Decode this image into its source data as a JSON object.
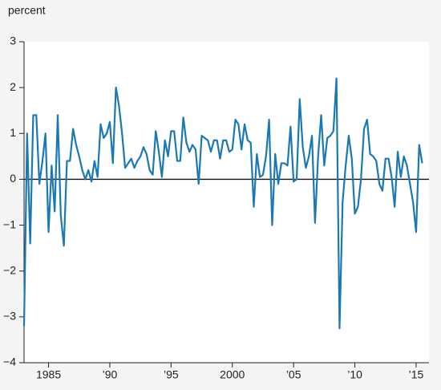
{
  "chart_data": {
    "type": "line",
    "y_label": "percent",
    "color": "#1a78b4",
    "xlim": [
      1983,
      2016.05
    ],
    "ylim": [
      -4,
      3
    ],
    "yticks": [
      {
        "value": -4,
        "label": "−4"
      },
      {
        "value": -3,
        "label": "−3"
      },
      {
        "value": -2,
        "label": "−2"
      },
      {
        "value": -1,
        "label": "−1"
      },
      0,
      1,
      2,
      3
    ],
    "xticks": [
      1985,
      {
        "value": 1990,
        "label": "’90"
      },
      {
        "value": 1995,
        "label": "’95"
      },
      2000,
      {
        "value": 2005,
        "label": "’05"
      },
      {
        "value": 2010,
        "label": "’10"
      },
      {
        "value": 2015,
        "label": "’15"
      }
    ],
    "zero_line": 0,
    "x": [
      1983,
      1983.25,
      1983.5,
      1983.75,
      1984,
      1984.25,
      1984.5,
      1984.75,
      1985,
      1985.25,
      1985.5,
      1985.75,
      1986,
      1986.25,
      1986.5,
      1986.75,
      1987,
      1987.25,
      1987.5,
      1987.75,
      1988,
      1988.25,
      1988.5,
      1988.75,
      1989,
      1989.25,
      1989.5,
      1989.75,
      1990,
      1990.25,
      1990.5,
      1990.75,
      1991,
      1991.25,
      1991.5,
      1991.75,
      1992,
      1992.25,
      1992.5,
      1992.75,
      1993,
      1993.25,
      1993.5,
      1993.75,
      1994,
      1994.25,
      1994.5,
      1994.75,
      1995,
      1995.25,
      1995.5,
      1995.75,
      1996,
      1996.25,
      1996.5,
      1996.75,
      1997,
      1997.25,
      1997.5,
      1997.75,
      1998,
      1998.25,
      1998.5,
      1998.75,
      1999,
      1999.25,
      1999.5,
      1999.75,
      2000,
      2000.25,
      2000.5,
      2000.75,
      2001,
      2001.25,
      2001.5,
      2001.75,
      2002,
      2002.25,
      2002.5,
      2002.75,
      2003,
      2003.25,
      2003.5,
      2003.75,
      2004,
      2004.25,
      2004.5,
      2004.75,
      2005,
      2005.25,
      2005.5,
      2005.75,
      2006,
      2006.25,
      2006.5,
      2006.75,
      2007,
      2007.25,
      2007.5,
      2007.75,
      2008,
      2008.25,
      2008.5,
      2008.75,
      2009,
      2009.25,
      2009.5,
      2009.75,
      2010,
      2010.25,
      2010.5,
      2010.75,
      2011,
      2011.25,
      2011.5,
      2011.75,
      2012,
      2012.25,
      2012.5,
      2012.75,
      2013,
      2013.25,
      2013.5,
      2013.75,
      2014,
      2014.25,
      2014.5,
      2014.75,
      2015,
      2015.25,
      2015.5
    ],
    "values": [
      -3.2,
      1.0,
      -1.4,
      1.4,
      1.4,
      -0.1,
      0.4,
      1.0,
      -1.15,
      0.3,
      -0.7,
      1.4,
      -0.8,
      -1.45,
      0.4,
      0.4,
      1.1,
      0.75,
      0.5,
      0.2,
      0.0,
      0.2,
      -0.05,
      0.4,
      0.05,
      1.2,
      0.9,
      1.0,
      1.25,
      0.35,
      2.0,
      1.6,
      1.0,
      0.25,
      0.35,
      0.45,
      0.25,
      0.4,
      0.5,
      0.7,
      0.55,
      0.2,
      0.1,
      1.05,
      0.6,
      0.05,
      0.85,
      0.5,
      1.05,
      1.05,
      0.4,
      0.4,
      1.35,
      0.8,
      0.6,
      0.75,
      0.65,
      -0.1,
      0.95,
      0.9,
      0.85,
      0.6,
      0.85,
      0.85,
      0.45,
      0.85,
      0.85,
      0.6,
      0.65,
      1.3,
      1.2,
      0.65,
      1.2,
      0.85,
      0.8,
      -0.6,
      0.55,
      0.05,
      0.1,
      0.5,
      1.3,
      -1.0,
      0.55,
      -0.1,
      0.35,
      0.35,
      0.3,
      1.15,
      -0.05,
      0.0,
      1.75,
      0.7,
      0.25,
      0.5,
      0.95,
      -0.95,
      0.5,
      1.4,
      0.3,
      0.9,
      0.95,
      1.05,
      2.2,
      -3.25,
      -0.5,
      0.3,
      0.95,
      0.45,
      -0.75,
      -0.6,
      0.0,
      1.1,
      1.3,
      0.55,
      0.5,
      0.4,
      -0.1,
      -0.25,
      0.45,
      0.45,
      0.05,
      -0.6,
      0.6,
      0.05,
      0.5,
      0.3,
      -0.1,
      -0.5,
      -1.15,
      0.75,
      0.35
    ]
  }
}
